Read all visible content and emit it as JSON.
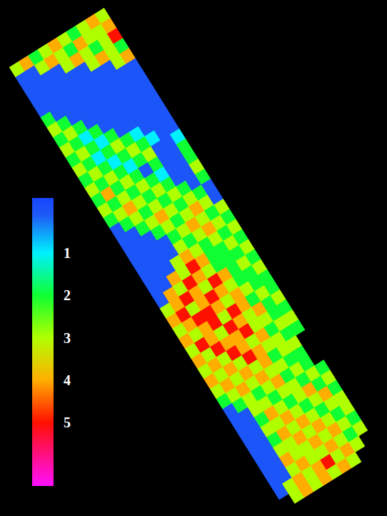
{
  "chart_data": {
    "type": "heatmap",
    "cells": [
      [
        3,
        4,
        2,
        3,
        4,
        3,
        2,
        3,
        4,
        3
      ],
      [
        0,
        0,
        3,
        4,
        3,
        2,
        4,
        3,
        3,
        4
      ],
      [
        0,
        0,
        0,
        0,
        3,
        4,
        3,
        2,
        3,
        5
      ],
      [
        0,
        0,
        0,
        0,
        0,
        0,
        3,
        4,
        3,
        2
      ],
      [
        0,
        0,
        0,
        0,
        0,
        0,
        0,
        0,
        3,
        4
      ],
      [
        2,
        0,
        0,
        0,
        0,
        0,
        0,
        0,
        0,
        0
      ],
      [
        3,
        2,
        0,
        0,
        0,
        0,
        0,
        0,
        0,
        0
      ],
      [
        2,
        3,
        2,
        0,
        0,
        0,
        0,
        0,
        0,
        0
      ],
      [
        3,
        2,
        1,
        2,
        0,
        0,
        0,
        0,
        0,
        0
      ],
      [
        2,
        3,
        2,
        1,
        2,
        0,
        0,
        0,
        0,
        0
      ],
      [
        3,
        2,
        1,
        2,
        3,
        2,
        1,
        0,
        0,
        0
      ],
      [
        2,
        3,
        2,
        1,
        2,
        3,
        2,
        1,
        0,
        0
      ],
      [
        3,
        2,
        3,
        2,
        1,
        2,
        3,
        0,
        0,
        1
      ],
      [
        2,
        4,
        2,
        3,
        2,
        0,
        2,
        0,
        0,
        2
      ],
      [
        3,
        2,
        3,
        2,
        3,
        2,
        1,
        0,
        0,
        2
      ],
      [
        2,
        3,
        4,
        3,
        2,
        3,
        2,
        0,
        0,
        3
      ],
      [
        0,
        2,
        3,
        2,
        3,
        2,
        3,
        2,
        0,
        2
      ],
      [
        0,
        0,
        2,
        3,
        4,
        3,
        2,
        3,
        2,
        0
      ],
      [
        0,
        0,
        0,
        2,
        3,
        2,
        3,
        4,
        3,
        0
      ],
      [
        0,
        0,
        0,
        0,
        2,
        3,
        4,
        3,
        2,
        3
      ],
      [
        0,
        0,
        0,
        0,
        3,
        2,
        3,
        4,
        3,
        2
      ],
      [
        0,
        0,
        0,
        3,
        4,
        3,
        2,
        3,
        2,
        3
      ],
      [
        0,
        0,
        4,
        3,
        5,
        4,
        2,
        2,
        3,
        2
      ],
      [
        0,
        4,
        3,
        5,
        4,
        3,
        2,
        2,
        2,
        3
      ],
      [
        3,
        4,
        5,
        4,
        3,
        5,
        4,
        2,
        3,
        2
      ],
      [
        4,
        5,
        3,
        4,
        5,
        4,
        3,
        2,
        2,
        3
      ],
      [
        3,
        4,
        5,
        5,
        4,
        3,
        4,
        3,
        2,
        2
      ],
      [
        4,
        3,
        4,
        5,
        3,
        5,
        4,
        2,
        3,
        2
      ],
      [
        3,
        5,
        4,
        3,
        5,
        4,
        3,
        4,
        2,
        3
      ],
      [
        4,
        3,
        5,
        4,
        4,
        5,
        3,
        3,
        2,
        2
      ],
      [
        3,
        4,
        3,
        5,
        4,
        3,
        4,
        2,
        3,
        3
      ],
      [
        4,
        3,
        4,
        3,
        5,
        4,
        3,
        3,
        2,
        2
      ],
      [
        3,
        4,
        3,
        4,
        3,
        4,
        2,
        3,
        3,
        null
      ],
      [
        2,
        3,
        4,
        3,
        4,
        3,
        3,
        2,
        2,
        null
      ],
      [
        0,
        2,
        3,
        2,
        3,
        4,
        2,
        3,
        2,
        null
      ],
      [
        0,
        0,
        3,
        3,
        2,
        3,
        3,
        2,
        3,
        2
      ],
      [
        0,
        0,
        2,
        4,
        3,
        2,
        3,
        4,
        2,
        3
      ],
      [
        0,
        0,
        3,
        3,
        4,
        3,
        2,
        3,
        4,
        2
      ],
      [
        0,
        0,
        2,
        4,
        3,
        4,
        3,
        2,
        3,
        3
      ],
      [
        0,
        0,
        3,
        3,
        4,
        3,
        4,
        3,
        2,
        3
      ],
      [
        0,
        0,
        4,
        3,
        3,
        4,
        3,
        4,
        3,
        2
      ],
      [
        0,
        0,
        3,
        4,
        3,
        3,
        4,
        3,
        2,
        3
      ],
      [
        0,
        3,
        4,
        3,
        4,
        5,
        3,
        4,
        3,
        null
      ],
      [
        null,
        3,
        4,
        3,
        4,
        3,
        4,
        3,
        null,
        null
      ]
    ],
    "colorbar": {
      "range": [
        -0.3,
        6.5
      ],
      "ticks": [
        1,
        2,
        3,
        4,
        5
      ]
    },
    "tick_labels": false
  }
}
